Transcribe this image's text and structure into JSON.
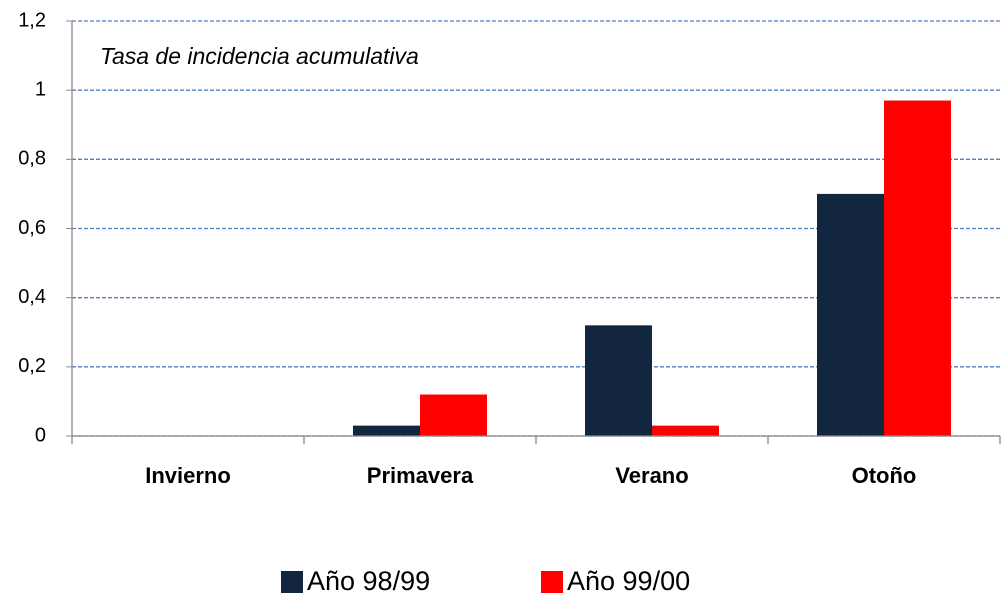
{
  "chart_data": {
    "type": "bar",
    "annotation": "Tasa de incidencia acumulativa",
    "categories": [
      "Invierno",
      "Primavera",
      "Verano",
      "Otoño"
    ],
    "series": [
      {
        "name": "Año 98/99",
        "color": "#13263f",
        "values": [
          0,
          0.03,
          0.32,
          0.7
        ]
      },
      {
        "name": "Año 99/00",
        "color": "#ff0000",
        "values": [
          0,
          0.12,
          0.03,
          0.97
        ]
      }
    ],
    "ylim": [
      0,
      1.2
    ],
    "yticks": [
      0,
      {
        "value": 0.2,
        "label": "0,2"
      },
      {
        "value": 0.4,
        "label": "0,4"
      },
      {
        "value": 0.6,
        "label": "0,6"
      },
      {
        "value": 0.8,
        "label": "0,8"
      },
      1,
      {
        "value": 1.2,
        "label": "1,2"
      }
    ],
    "grid": true,
    "legend": "bottom"
  }
}
